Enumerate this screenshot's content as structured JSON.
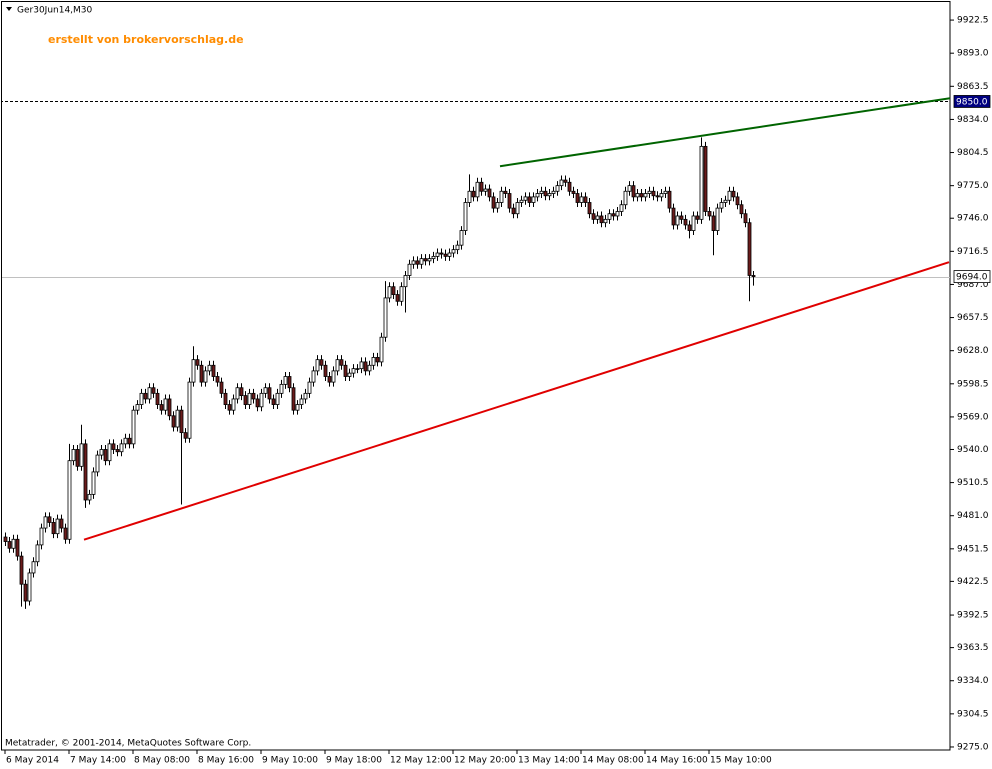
{
  "chart_data": {
    "type": "candlestick",
    "title": "Ger30Jun14,M30",
    "watermark": "erstellt von brokervorschlag.de",
    "copyright": "Metatrader, © 2001-2014, MetaQuotes Software Corp.",
    "categories": [
      "6 May 2014",
      null,
      null,
      null,
      null,
      null,
      null,
      null,
      null,
      null,
      null,
      null,
      null,
      null,
      null,
      null,
      "7 May 14:00",
      null,
      null,
      null,
      null,
      null,
      null,
      null,
      null,
      null,
      null,
      null,
      null,
      null,
      null,
      null,
      "8 May 08:00",
      null,
      null,
      null,
      null,
      null,
      null,
      null,
      null,
      null,
      null,
      null,
      null,
      null,
      null,
      null,
      "8 May 16:00",
      null,
      null,
      null,
      null,
      null,
      null,
      null,
      null,
      null,
      null,
      null,
      null,
      null,
      null,
      null,
      "9 May 10:00",
      null,
      null,
      null,
      null,
      null,
      null,
      null,
      null,
      null,
      null,
      null,
      null,
      null,
      null,
      null,
      "9 May 18:00",
      null,
      null,
      null,
      null,
      null,
      null,
      null,
      null,
      null,
      null,
      null,
      null,
      null,
      null,
      null,
      "12 May 12:00",
      null,
      null,
      null,
      null,
      null,
      null,
      null,
      null,
      null,
      null,
      null,
      null,
      null,
      null,
      null,
      "12 May 20:00",
      null,
      null,
      null,
      null,
      null,
      null,
      null,
      null,
      null,
      null,
      null,
      null,
      null,
      null,
      null,
      "13 May 14:00",
      null,
      null,
      null,
      null,
      null,
      null,
      null,
      null,
      null,
      null,
      null,
      null,
      null,
      null,
      null,
      "14 May 08:00",
      null,
      null,
      null,
      null,
      null,
      null,
      null,
      null,
      null,
      null,
      null,
      null,
      null,
      null,
      null,
      "14 May 16:00",
      null,
      null,
      null,
      null,
      null,
      null,
      null,
      null,
      null,
      null,
      null,
      null,
      null,
      null,
      null,
      "15 May 10:00",
      null,
      null,
      null,
      null,
      null,
      null,
      null,
      null,
      null,
      null,
      null
    ],
    "open": [
      9462,
      9458,
      9452,
      9460,
      9445,
      9420,
      9405,
      9430,
      9440,
      9455,
      9470,
      9480,
      9475,
      9465,
      9478,
      9470,
      9460,
      9530,
      9540,
      9525,
      9545,
      9495,
      9500,
      9520,
      9535,
      9540,
      9530,
      9545,
      9540,
      9538,
      9545,
      9550,
      9545,
      9575,
      9580,
      9590,
      9585,
      9595,
      9590,
      9580,
      9575,
      9585,
      9570,
      9560,
      9575,
      9555,
      9550,
      9600,
      9620,
      9615,
      9600,
      9610,
      9615,
      9605,
      9600,
      9590,
      9580,
      9575,
      9585,
      9595,
      9588,
      9580,
      9590,
      9585,
      9578,
      9590,
      9595,
      9585,
      9580,
      9590,
      9598,
      9605,
      9595,
      9575,
      9580,
      9585,
      9590,
      9600,
      9610,
      9620,
      9615,
      9605,
      9600,
      9610,
      9620,
      9615,
      9605,
      9608,
      9612,
      9612,
      9618,
      9610,
      9615,
      9622,
      9618,
      9640,
      9675,
      9685,
      9678,
      9672,
      9685,
      9695,
      9705,
      9708,
      9705,
      9710,
      9708,
      9710,
      9712,
      9715,
      9714,
      9712,
      9715,
      9718,
      9722,
      9735,
      9760,
      9770,
      9765,
      9778,
      9770,
      9772,
      9765,
      9755,
      9760,
      9770,
      9768,
      9755,
      9750,
      9760,
      9762,
      9765,
      9760,
      9765,
      9768,
      9770,
      9766,
      9768,
      9770,
      9775,
      9780,
      9778,
      9770,
      9768,
      9760,
      9765,
      9760,
      9750,
      9745,
      9748,
      9742,
      9745,
      9750,
      9748,
      9752,
      9758,
      9770,
      9775,
      9765,
      9768,
      9765,
      9768,
      9770,
      9766,
      9765,
      9768,
      9770,
      9755,
      9740,
      9748,
      9745,
      9740,
      9735,
      9748,
      9745,
      9810,
      9752,
      9748,
      9735,
      9755,
      9760,
      9762,
      9770,
      9765,
      9758,
      9750,
      9742,
      9695
    ],
    "high": [
      9466,
      9462,
      9464,
      9464,
      9449,
      9424,
      9434,
      9444,
      9459,
      9474,
      9484,
      9484,
      9479,
      9482,
      9482,
      9474,
      9545,
      9544,
      9544,
      9562,
      9549,
      9504,
      9524,
      9539,
      9544,
      9544,
      9549,
      9549,
      9544,
      9549,
      9554,
      9554,
      9579,
      9584,
      9594,
      9594,
      9599,
      9599,
      9594,
      9584,
      9589,
      9589,
      9574,
      9579,
      9579,
      9559,
      9604,
      9632,
      9624,
      9619,
      9614,
      9619,
      9619,
      9609,
      9604,
      9594,
      9584,
      9589,
      9599,
      9599,
      9592,
      9594,
      9594,
      9589,
      9594,
      9599,
      9599,
      9589,
      9594,
      9602,
      9609,
      9609,
      9599,
      9584,
      9589,
      9594,
      9604,
      9614,
      9624,
      9624,
      9619,
      9609,
      9614,
      9624,
      9624,
      9619,
      9612,
      9616,
      9616,
      9622,
      9622,
      9619,
      9626,
      9626,
      9644,
      9690,
      9689,
      9689,
      9682,
      9689,
      9699,
      9709,
      9712,
      9712,
      9714,
      9714,
      9714,
      9716,
      9719,
      9719,
      9718,
      9719,
      9722,
      9726,
      9739,
      9764,
      9785,
      9774,
      9782,
      9782,
      9776,
      9776,
      9769,
      9764,
      9774,
      9774,
      9772,
      9759,
      9764,
      9766,
      9769,
      9769,
      9769,
      9772,
      9774,
      9774,
      9772,
      9774,
      9779,
      9784,
      9784,
      9782,
      9774,
      9772,
      9769,
      9769,
      9764,
      9754,
      9752,
      9752,
      9749,
      9754,
      9754,
      9756,
      9762,
      9774,
      9779,
      9779,
      9772,
      9772,
      9772,
      9774,
      9774,
      9770,
      9772,
      9774,
      9774,
      9759,
      9752,
      9752,
      9749,
      9744,
      9752,
      9752,
      9818,
      9814,
      9756,
      9752,
      9759,
      9764,
      9766,
      9774,
      9774,
      9769,
      9762,
      9754,
      9746,
      9699
    ],
    "low": [
      9454,
      9448,
      9448,
      9441,
      9400,
      9398,
      9401,
      9426,
      9436,
      9451,
      9466,
      9471,
      9461,
      9461,
      9466,
      9456,
      9456,
      9526,
      9521,
      9521,
      9488,
      9491,
      9496,
      9516,
      9531,
      9526,
      9526,
      9536,
      9534,
      9534,
      9541,
      9541,
      9541,
      9571,
      9576,
      9581,
      9581,
      9586,
      9576,
      9571,
      9571,
      9566,
      9556,
      9556,
      9491,
      9546,
      9546,
      9596,
      9611,
      9596,
      9596,
      9606,
      9601,
      9596,
      9586,
      9576,
      9571,
      9571,
      9581,
      9584,
      9576,
      9576,
      9581,
      9574,
      9574,
      9586,
      9581,
      9576,
      9576,
      9586,
      9594,
      9591,
      9571,
      9571,
      9576,
      9581,
      9586,
      9596,
      9606,
      9611,
      9601,
      9596,
      9596,
      9606,
      9611,
      9601,
      9601,
      9604,
      9608,
      9608,
      9606,
      9606,
      9611,
      9614,
      9614,
      9636,
      9671,
      9674,
      9668,
      9668,
      9662,
      9691,
      9701,
      9701,
      9701,
      9704,
      9704,
      9706,
      9708,
      9710,
      9708,
      9708,
      9711,
      9714,
      9718,
      9731,
      9756,
      9761,
      9761,
      9766,
      9766,
      9761,
      9751,
      9751,
      9756,
      9764,
      9751,
      9746,
      9746,
      9756,
      9758,
      9756,
      9756,
      9761,
      9764,
      9762,
      9762,
      9764,
      9766,
      9771,
      9774,
      9766,
      9764,
      9756,
      9756,
      9756,
      9746,
      9741,
      9741,
      9738,
      9738,
      9741,
      9744,
      9744,
      9748,
      9754,
      9766,
      9761,
      9761,
      9761,
      9761,
      9764,
      9762,
      9761,
      9761,
      9764,
      9751,
      9736,
      9736,
      9741,
      9736,
      9728,
      9731,
      9741,
      9741,
      9748,
      9744,
      9713,
      9731,
      9751,
      9756,
      9758,
      9761,
      9754,
      9746,
      9738,
      9672,
      9686
    ],
    "close": [
      9458,
      9452,
      9460,
      9445,
      9420,
      9405,
      9430,
      9440,
      9455,
      9470,
      9480,
      9475,
      9465,
      9478,
      9470,
      9460,
      9530,
      9540,
      9525,
      9545,
      9495,
      9500,
      9520,
      9535,
      9540,
      9530,
      9545,
      9540,
      9538,
      9545,
      9550,
      9545,
      9575,
      9580,
      9590,
      9585,
      9595,
      9590,
      9580,
      9575,
      9585,
      9570,
      9560,
      9575,
      9555,
      9550,
      9600,
      9620,
      9615,
      9600,
      9610,
      9615,
      9605,
      9600,
      9590,
      9580,
      9575,
      9585,
      9595,
      9588,
      9580,
      9590,
      9585,
      9578,
      9590,
      9595,
      9585,
      9580,
      9590,
      9598,
      9605,
      9595,
      9575,
      9580,
      9585,
      9590,
      9600,
      9610,
      9620,
      9615,
      9605,
      9600,
      9610,
      9620,
      9615,
      9605,
      9608,
      9612,
      9612,
      9618,
      9610,
      9615,
      9622,
      9618,
      9640,
      9675,
      9685,
      9678,
      9672,
      9685,
      9695,
      9705,
      9708,
      9705,
      9710,
      9708,
      9710,
      9712,
      9715,
      9714,
      9712,
      9715,
      9718,
      9722,
      9735,
      9760,
      9770,
      9765,
      9778,
      9770,
      9772,
      9765,
      9755,
      9760,
      9770,
      9768,
      9755,
      9750,
      9760,
      9762,
      9765,
      9760,
      9765,
      9768,
      9770,
      9766,
      9768,
      9770,
      9775,
      9780,
      9778,
      9770,
      9768,
      9760,
      9765,
      9760,
      9750,
      9745,
      9748,
      9742,
      9745,
      9750,
      9748,
      9752,
      9758,
      9770,
      9775,
      9765,
      9768,
      9765,
      9768,
      9770,
      9766,
      9765,
      9768,
      9770,
      9755,
      9740,
      9748,
      9745,
      9740,
      9735,
      9748,
      9745,
      9810,
      9752,
      9748,
      9735,
      9755,
      9760,
      9762,
      9770,
      9765,
      9758,
      9750,
      9742,
      9695,
      9694
    ],
    "up_color": "#ffffff",
    "down_color": "#6b1c1c",
    "wick_color": "#000000",
    "xlim": [
      -1.25,
      236.25
    ],
    "ylim": [
      9272.3,
      9938.6
    ],
    "yticks": [
      9922.5,
      {
        "value": 9893,
        "label": "9893.0"
      },
      9863.5,
      {
        "value": 9834,
        "label": "9834.0"
      },
      9804.5,
      {
        "value": 9775,
        "label": "9775.0"
      },
      {
        "value": 9746,
        "label": "9746.0"
      },
      9716.5,
      {
        "value": 9687,
        "label": "9687.0"
      },
      9657.5,
      {
        "value": 9628,
        "label": "9628.0"
      },
      9598.5,
      {
        "value": 9569,
        "label": "9569.0"
      },
      {
        "value": 9540,
        "label": "9540.0"
      },
      9510.5,
      {
        "value": 9481,
        "label": "9481.0"
      },
      9451.5,
      9422.5,
      9392.5,
      9363.5,
      {
        "value": 9334,
        "label": "9334.0"
      },
      9304.5,
      {
        "value": 9275,
        "label": "9275.0"
      }
    ],
    "hlines": [
      {
        "value": 9850,
        "label": "9850.0",
        "color": "#000000",
        "dash": true,
        "box": "#000080",
        "text_color": "#ffffff"
      },
      {
        "value": 9694,
        "label": "9694.0",
        "color": "#c0c0c0",
        "dash": false,
        "box": "#ffffff",
        "text_color": "#000000"
      }
    ],
    "trendlines": [
      {
        "x": [
          123.75,
          236.25
        ],
        "values": [
          9792.3,
          9852.9
        ],
        "color": "#006400"
      },
      {
        "x": [
          19.75,
          236
        ],
        "values": [
          9459.6,
          9706.8
        ],
        "color": "#e00000"
      }
    ]
  }
}
